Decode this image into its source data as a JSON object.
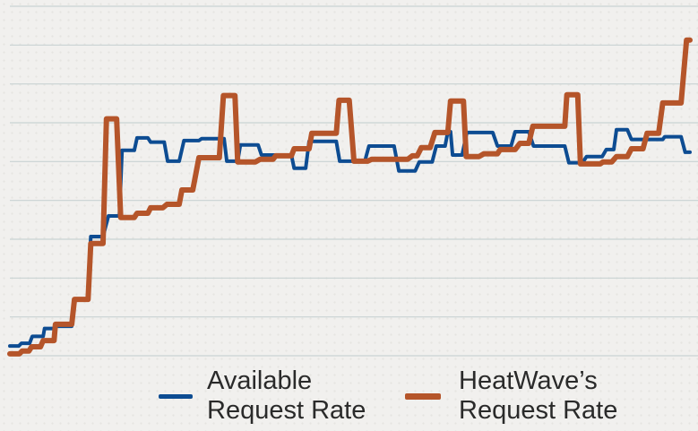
{
  "chart_data": {
    "type": "line",
    "title": "",
    "xlabel": "",
    "ylabel": "",
    "xlim": [
      0,
      100
    ],
    "ylim": [
      0,
      9
    ],
    "grid": true,
    "legend_position": "bottom",
    "series": [
      {
        "name": "Available Request Rate",
        "color": "#0d4c92",
        "segments": [
          [
            0,
            1.3,
            0.25
          ],
          [
            1.7,
            2.9,
            0.32
          ],
          [
            3.3,
            4.9,
            0.5
          ],
          [
            5.1,
            6.5,
            0.7
          ],
          [
            6.9,
            9.1,
            0.76
          ],
          [
            9.5,
            11.5,
            1.45
          ],
          [
            11.9,
            13.7,
            3.07
          ],
          [
            14.5,
            16.1,
            3.6
          ],
          [
            16.5,
            18.3,
            5.29
          ],
          [
            18.7,
            20.3,
            5.61
          ],
          [
            20.7,
            22.7,
            5.5
          ],
          [
            23.2,
            24.9,
            5.01
          ],
          [
            25.6,
            27.8,
            5.54
          ],
          [
            28.2,
            31.5,
            5.59
          ],
          [
            31.9,
            33.5,
            5.01
          ],
          [
            33.9,
            36.5,
            5.43
          ],
          [
            37,
            41.4,
            5.17
          ],
          [
            41.8,
            43.5,
            4.83
          ],
          [
            44,
            48,
            5.52
          ],
          [
            48.5,
            52.2,
            5.01
          ],
          [
            52.8,
            56.5,
            5.4
          ],
          [
            57.2,
            59.6,
            4.76
          ],
          [
            60.2,
            62.1,
            4.99
          ],
          [
            62.7,
            64,
            5.4
          ],
          [
            64.4,
            64.8,
            5.77
          ],
          [
            65.1,
            66.5,
            5.17
          ],
          [
            67.2,
            71,
            5.75
          ],
          [
            71.7,
            73.7,
            5.4
          ],
          [
            74.3,
            76.3,
            5.77
          ],
          [
            77,
            81.6,
            5.4
          ],
          [
            82.2,
            84.2,
            4.97
          ],
          [
            84.8,
            87.1,
            5.13
          ],
          [
            87.7,
            88.8,
            5.31
          ],
          [
            89.2,
            90.8,
            5.82
          ],
          [
            91.4,
            96,
            5.57
          ],
          [
            96.3,
            98.7,
            5.64
          ],
          [
            99.3,
            100,
            5.24
          ]
        ]
      },
      {
        "name": "HeatWave’s Request Rate",
        "color": "#b5552a",
        "segments": [
          [
            0,
            1.4,
            0.05
          ],
          [
            1.8,
            2.8,
            0.12
          ],
          [
            3.2,
            4.5,
            0.23
          ],
          [
            4.9,
            6.5,
            0.39
          ],
          [
            6.7,
            9.1,
            0.81
          ],
          [
            9.5,
            11.5,
            1.45
          ],
          [
            11.9,
            13.7,
            2.89
          ],
          [
            14.2,
            15.7,
            6.1
          ],
          [
            16.3,
            18.3,
            3.56
          ],
          [
            18.7,
            20.3,
            3.67
          ],
          [
            20.7,
            22.5,
            3.81
          ],
          [
            23.1,
            24.9,
            3.9
          ],
          [
            25.3,
            26.9,
            4.27
          ],
          [
            27.8,
            30.8,
            5.1
          ],
          [
            31.4,
            33.1,
            6.7
          ],
          [
            33.5,
            36.1,
            4.99
          ],
          [
            36.8,
            38.7,
            5.06
          ],
          [
            39.1,
            41.4,
            5.15
          ],
          [
            41.8,
            44,
            5.33
          ],
          [
            44.4,
            48,
            5.73
          ],
          [
            48.4,
            49.9,
            6.58
          ],
          [
            50.6,
            52.6,
            5.01
          ],
          [
            53.2,
            58.5,
            5.06
          ],
          [
            59.2,
            59.9,
            5.15
          ],
          [
            60.5,
            61.8,
            5.36
          ],
          [
            62.5,
            64.4,
            5.75
          ],
          [
            64.8,
            66.7,
            6.56
          ],
          [
            67.1,
            69,
            5.13
          ],
          [
            69.7,
            71.7,
            5.2
          ],
          [
            72.1,
            74.3,
            5.31
          ],
          [
            75,
            76.3,
            5.47
          ],
          [
            76.9,
            81.6,
            5.91
          ],
          [
            81.9,
            83.5,
            6.72
          ],
          [
            83.9,
            86.8,
            4.94
          ],
          [
            87.2,
            88.5,
            4.99
          ],
          [
            89.2,
            90.8,
            5.13
          ],
          [
            91.4,
            93.1,
            5.33
          ],
          [
            93.7,
            95.4,
            5.73
          ],
          [
            96,
            98.7,
            6.51
          ],
          [
            99.5,
            100,
            8.13
          ]
        ]
      }
    ]
  },
  "legend": {
    "available": {
      "line1": "Available",
      "line2": "Request Rate"
    },
    "heatwave": {
      "line1": "HeatWave’s",
      "line2": "Request Rate"
    }
  }
}
